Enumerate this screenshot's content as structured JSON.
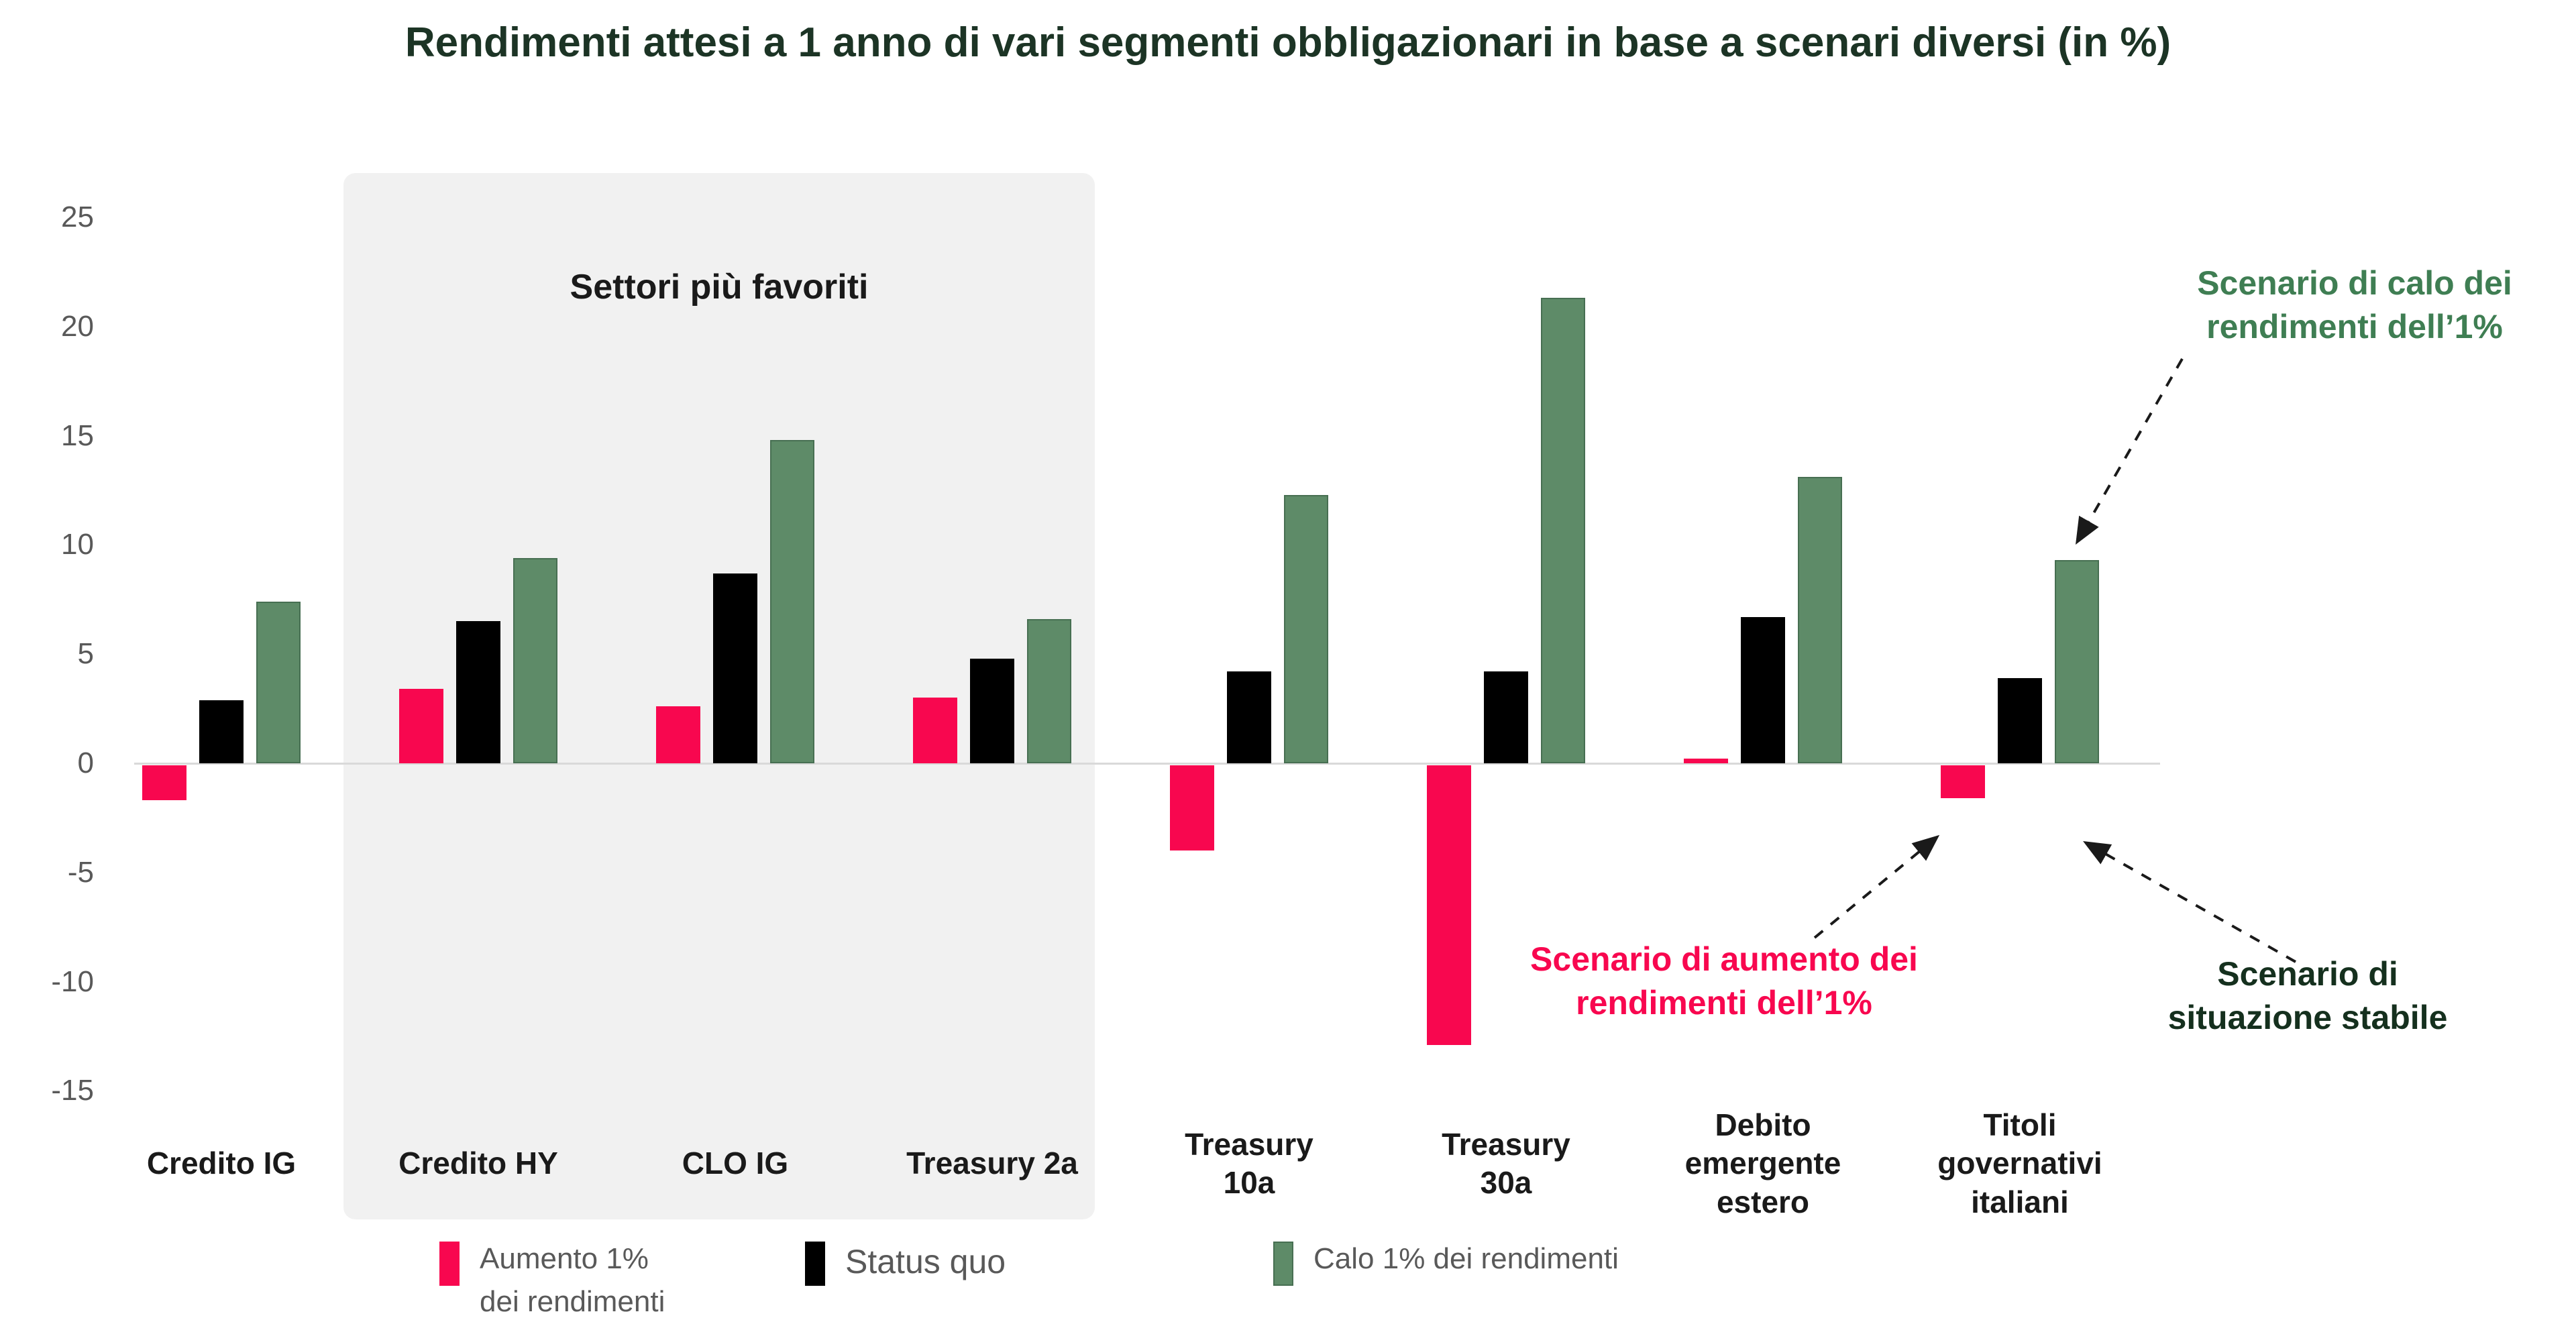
{
  "title": "Rendimenti attesi a 1 anno di vari segmenti obbligazionari in base a scenari diversi (in %)",
  "colors": {
    "pink": "#f8074f",
    "black": "#000000",
    "green": "#5e8b68",
    "green_border": "#476f52",
    "highlight_band": "#f1f1f1",
    "zero_line": "#d9d9d9",
    "axis_text": "#595959",
    "category_text": "#1a1a1a",
    "title_text": "#1c3425",
    "annotation_green": "#3f7e53",
    "annotation_pink": "#f8074f",
    "annotation_dark": "#15301e"
  },
  "chart_data": {
    "type": "bar",
    "title": "Rendimenti attesi a 1 anno di vari segmenti obbligazionari in base a scenari diversi (in %)",
    "xlabel": "",
    "ylabel": "",
    "ylim": [
      -15,
      25
    ],
    "yticks": [
      25,
      20,
      15,
      10,
      5,
      0,
      -5,
      -10,
      -15
    ],
    "grid": false,
    "legend_position": "bottom",
    "categories": [
      "Credito IG",
      "Credito HY",
      "CLO IG",
      "Treasury 2a",
      "Treasury\n10a",
      "Treasury\n30a",
      "Debito\nemergente\nestero",
      "Titoli\ngovernativi\nitaliani"
    ],
    "series": [
      {
        "name": "Aumento 1% dei rendimenti",
        "legend_label": "Aumento 1%\ndei rendimenti",
        "color": "#f8074f",
        "values": [
          -1.6,
          3.4,
          2.6,
          3.0,
          -3.9,
          -12.8,
          0.2,
          -1.5
        ]
      },
      {
        "name": "Status quo",
        "legend_label": "Status quo",
        "color": "#000000",
        "values": [
          2.9,
          6.5,
          8.7,
          4.8,
          4.2,
          4.2,
          6.7,
          3.9
        ]
      },
      {
        "name": "Calo 1% dei rendimenti",
        "legend_label": "Calo 1% dei rendimenti",
        "color": "#5e8b68",
        "values": [
          7.4,
          9.4,
          14.8,
          6.6,
          12.3,
          21.3,
          13.1,
          9.3
        ]
      }
    ],
    "highlight_band": {
      "label": "Settori più favoriti",
      "categories": [
        "Credito HY",
        "CLO IG",
        "Treasury 2a"
      ]
    },
    "annotations": [
      {
        "id": "calo",
        "text": "Scenario di calo dei\nrendimenti dell’1%",
        "color": "#3f7e53"
      },
      {
        "id": "aumento",
        "text": "Scenario di aumento dei\nrendimenti dell’1%",
        "color": "#f8074f"
      },
      {
        "id": "stabile",
        "text": "Scenario di\nsituazione stabile",
        "color": "#15301e"
      }
    ]
  }
}
